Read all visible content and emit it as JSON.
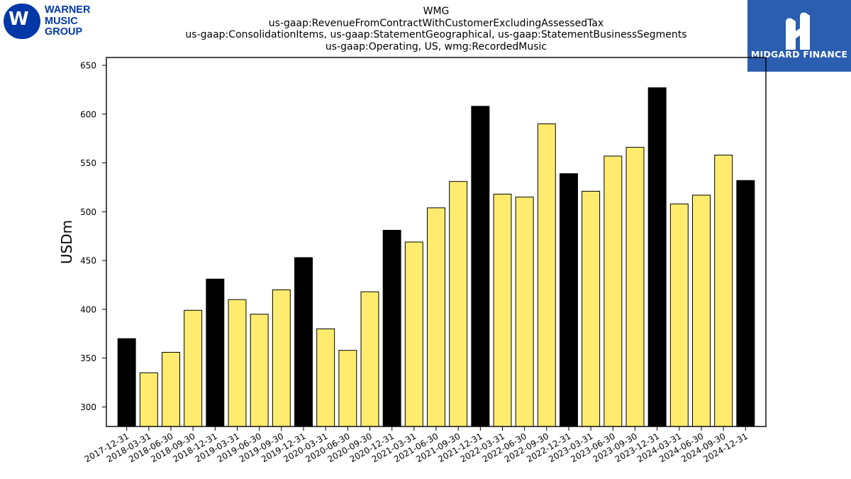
{
  "logos": {
    "wmg": {
      "lines": [
        "WARNER",
        "MUSIC",
        "GROUP"
      ],
      "color": "#0038a8"
    },
    "midgard": {
      "name": "MIDGARD FINANCE",
      "color": "#2b5db0"
    }
  },
  "chart_data": {
    "type": "bar",
    "title_lines": [
      "WMG",
      "us-gaap:RevenueFromContractWithCustomerExcludingAssessedTax",
      "us-gaap:ConsolidationItems, us-gaap:StatementGeographical, us-gaap:StatementBusinessSegments",
      "us-gaap:Operating, US, wmg:RecordedMusic"
    ],
    "ylabel": "USDm",
    "xlabel": "",
    "ylim": [
      280,
      658
    ],
    "yticks": [
      300,
      350,
      400,
      450,
      500,
      550,
      600,
      650
    ],
    "grid": false,
    "highlight_color": "#000000",
    "default_color": "#ffec6e",
    "categories": [
      "2017-12-31",
      "2018-03-31",
      "2018-06-30",
      "2018-09-30",
      "2018-12-31",
      "2019-03-31",
      "2019-06-30",
      "2019-09-30",
      "2019-12-31",
      "2020-03-31",
      "2020-06-30",
      "2020-09-30",
      "2020-12-31",
      "2021-03-31",
      "2021-06-30",
      "2021-09-30",
      "2021-12-31",
      "2022-03-31",
      "2022-06-30",
      "2022-09-30",
      "2022-12-31",
      "2023-03-31",
      "2023-06-30",
      "2023-09-30",
      "2023-12-31",
      "2024-03-31",
      "2024-06-30",
      "2024-09-30",
      "2024-12-31"
    ],
    "values": [
      370,
      335,
      356,
      399,
      431,
      410,
      395,
      420,
      453,
      380,
      358,
      418,
      481,
      469,
      504,
      531,
      608,
      518,
      515,
      590,
      539,
      521,
      557,
      566,
      627,
      508,
      517,
      558,
      532
    ],
    "highlight": [
      true,
      false,
      false,
      false,
      true,
      false,
      false,
      false,
      true,
      false,
      false,
      false,
      true,
      false,
      false,
      false,
      true,
      false,
      false,
      false,
      true,
      false,
      false,
      false,
      true,
      false,
      false,
      false,
      true
    ]
  }
}
